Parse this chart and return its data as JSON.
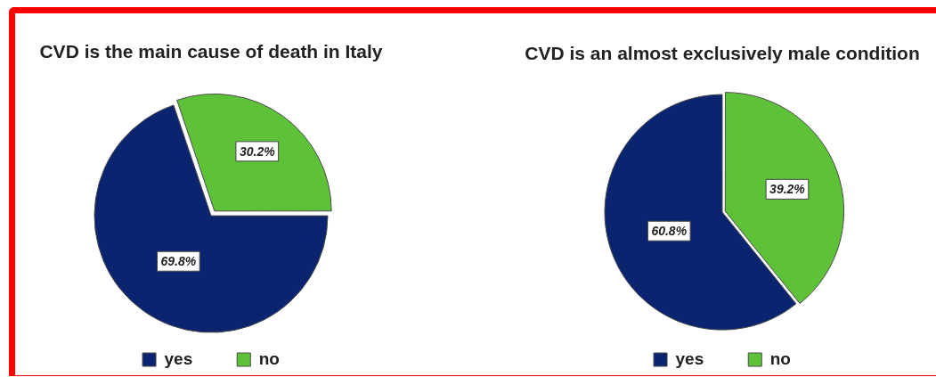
{
  "chart_data": [
    {
      "type": "pie",
      "title": "CVD is the main cause of death in Italy",
      "categories": [
        "yes",
        "no"
      ],
      "values": [
        69.8,
        30.2
      ],
      "colors": [
        "#0b2470",
        "#5dc238"
      ],
      "value_labels": [
        "69.8%",
        "30.2%"
      ],
      "legend": "bottom"
    },
    {
      "type": "pie",
      "title": "CVD is an almost exclusively male condition",
      "categories": [
        "yes",
        "no"
      ],
      "values": [
        60.8,
        39.2
      ],
      "colors": [
        "#0b2470",
        "#5dc238"
      ],
      "value_labels": [
        "60.8%",
        "39.2%"
      ],
      "legend": "bottom"
    }
  ]
}
